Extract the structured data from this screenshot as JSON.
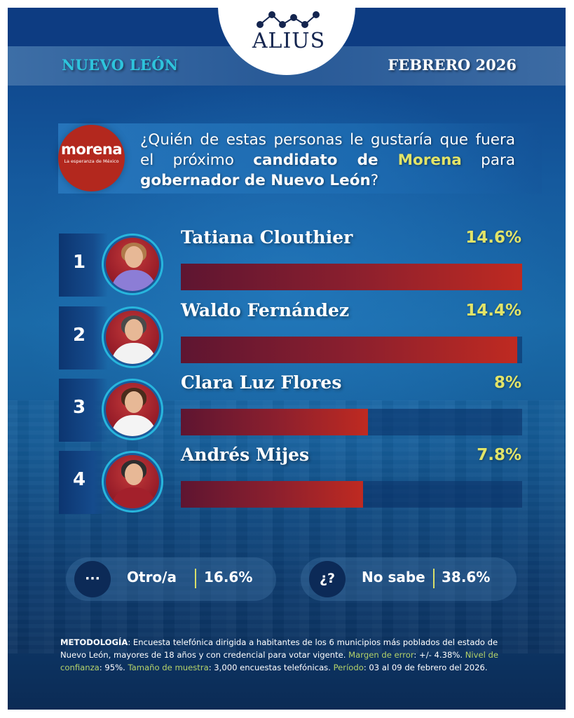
{
  "brand": {
    "logo_text": "ALIUS",
    "logo_icon": "line-chart-dots-icon"
  },
  "header": {
    "region": "NUEVO LEÓN",
    "date": "FEBRERO 2026"
  },
  "question": {
    "party_logo_word": "morena",
    "party_logo_tagline": "La esperanza de México",
    "text_part1": "¿Quién de estas personas le gustaría que fuera el próximo ",
    "text_bold1": "candidato de ",
    "text_highlight": "Morena",
    "text_part2": " para ",
    "text_bold2": "gobernador de Nuevo León",
    "text_part3": "?"
  },
  "candidates": [
    {
      "rank": "1",
      "name": "Tatiana Clouthier",
      "pct_label": "14.6%",
      "value": 14.6,
      "hair": "#b07a4a",
      "body": "#8c7dd6"
    },
    {
      "rank": "2",
      "name": "Waldo Fernández",
      "pct_label": "14.4%",
      "value": 14.4,
      "hair": "#4a4a4a",
      "body": "#f2f2f2"
    },
    {
      "rank": "3",
      "name": "Clara Luz Flores",
      "pct_label": "8%",
      "value": 8,
      "hair": "#4a2c1c",
      "body": "#f4f4f4"
    },
    {
      "rank": "4",
      "name": "Andrés Mijes",
      "pct_label": "7.8%",
      "value": 7.8,
      "hair": "#2e2e2e",
      "body": "#a3202b"
    }
  ],
  "others": [
    {
      "icon_glyph": "···",
      "icon": "ellipsis-icon",
      "label": "Otro/a",
      "value": "16.6%"
    },
    {
      "icon_glyph": "¿?",
      "icon": "question-icon",
      "label": "No sabe",
      "value": "38.6%"
    }
  ],
  "methodology": {
    "label": "METODOLOGÍA",
    "text1": ": Encuesta telefónica dirigida a habitantes de los 6 municipios más poblados del estado de Nuevo León, mayores de 18 años y con credencial para votar vigente. ",
    "margin_label": "Margen de error",
    "margin_value": ": +/- 4.38%. ",
    "confidence_label": "Nivel de confianza",
    "confidence_value": ": 95%. ",
    "sample_label": "Tamaño de muestra",
    "sample_value": ": 3,000 encuestas telefónicas. ",
    "period_label": "Período",
    "period_value": ": 03 al 09 de febrero del 2026."
  },
  "colors": {
    "accent_yellow": "#e2e468",
    "region_cyan": "#2ec4dc",
    "bar_red": "#bf2a21",
    "morena_red": "#b3281e"
  },
  "chart_data": {
    "type": "bar",
    "orientation": "horizontal",
    "title": "¿Quién de estas personas le gustaría que fuera el próximo candidato de Morena para gobernador de Nuevo León?",
    "categories": [
      "Tatiana Clouthier",
      "Waldo Fernández",
      "Clara Luz Flores",
      "Andrés Mijes",
      "Otro/a",
      "No sabe"
    ],
    "values": [
      14.6,
      14.4,
      8,
      7.8,
      16.6,
      38.6
    ],
    "bar_series": {
      "categories": [
        "Tatiana Clouthier",
        "Waldo Fernández",
        "Clara Luz Flores",
        "Andrés Mijes"
      ],
      "values": [
        14.6,
        14.4,
        8,
        7.8
      ]
    },
    "unit": "%",
    "xlabel": "",
    "ylabel": "",
    "grid": false,
    "legend": "none",
    "subtitle": "NUEVO LEÓN — FEBRERO 2026"
  }
}
